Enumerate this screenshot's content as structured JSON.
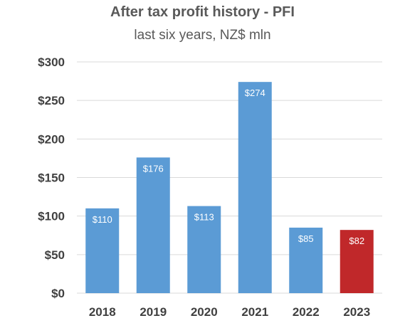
{
  "chart_data": {
    "type": "bar",
    "title": "After tax profit history - PFI",
    "subtitle": "last six years, NZ$ mln",
    "categories": [
      "2018",
      "2019",
      "2020",
      "2021",
      "2022",
      "2023"
    ],
    "values": [
      110,
      176,
      113,
      274,
      85,
      82
    ],
    "data_labels": [
      "$110",
      "$176",
      "$113",
      "$274",
      "$85",
      "$82"
    ],
    "bar_colors": [
      "#5b9bd5",
      "#5b9bd5",
      "#5b9bd5",
      "#5b9bd5",
      "#5b9bd5",
      "#c0282a"
    ],
    "ylim": [
      0,
      300
    ],
    "yticks": [
      0,
      50,
      100,
      150,
      200,
      250,
      300
    ],
    "ytick_labels": [
      "$0",
      "$50",
      "$100",
      "$150",
      "$200",
      "$250",
      "$300"
    ],
    "grid": true,
    "gridline_color": "#d9d9d9",
    "legend": "none"
  }
}
